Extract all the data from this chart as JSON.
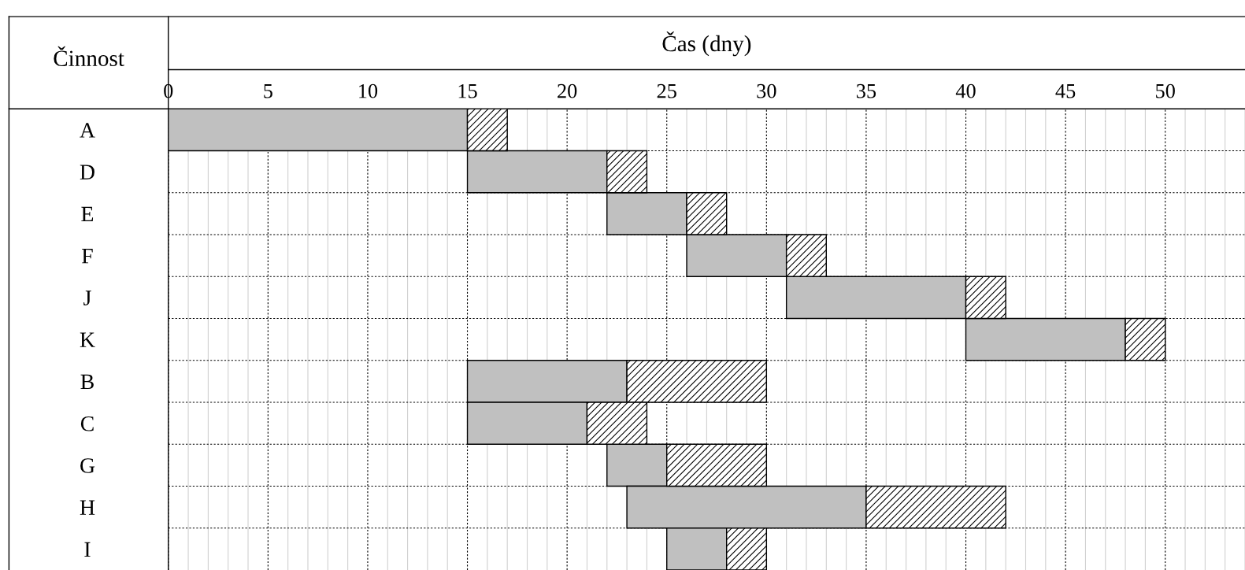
{
  "chart_data": {
    "type": "bar",
    "orientation": "horizontal",
    "xlabel": "Čas (dny)",
    "ylabel": "Činnost",
    "categories": [
      "A",
      "D",
      "E",
      "F",
      "J",
      "K",
      "B",
      "C",
      "G",
      "H",
      "I"
    ],
    "series": [
      {
        "color": "#c0c0c0",
        "base": [
          0,
          15,
          22,
          26,
          31,
          40,
          15,
          15,
          22,
          23,
          25
        ],
        "values": [
          15,
          7,
          4,
          5,
          9,
          8,
          8,
          6,
          3,
          12,
          3
        ]
      },
      {
        "color": "#000000",
        "base": [
          15,
          22,
          26,
          31,
          40,
          48,
          23,
          21,
          25,
          35,
          28
        ],
        "values": [
          2,
          2,
          2,
          2,
          2,
          2,
          7,
          3,
          5,
          7,
          2
        ]
      }
    ],
    "xlim": [
      0,
      54
    ],
    "xticks": [
      0,
      5,
      10,
      15,
      20,
      25,
      30,
      35,
      40,
      45,
      50
    ],
    "grid": "x"
  }
}
